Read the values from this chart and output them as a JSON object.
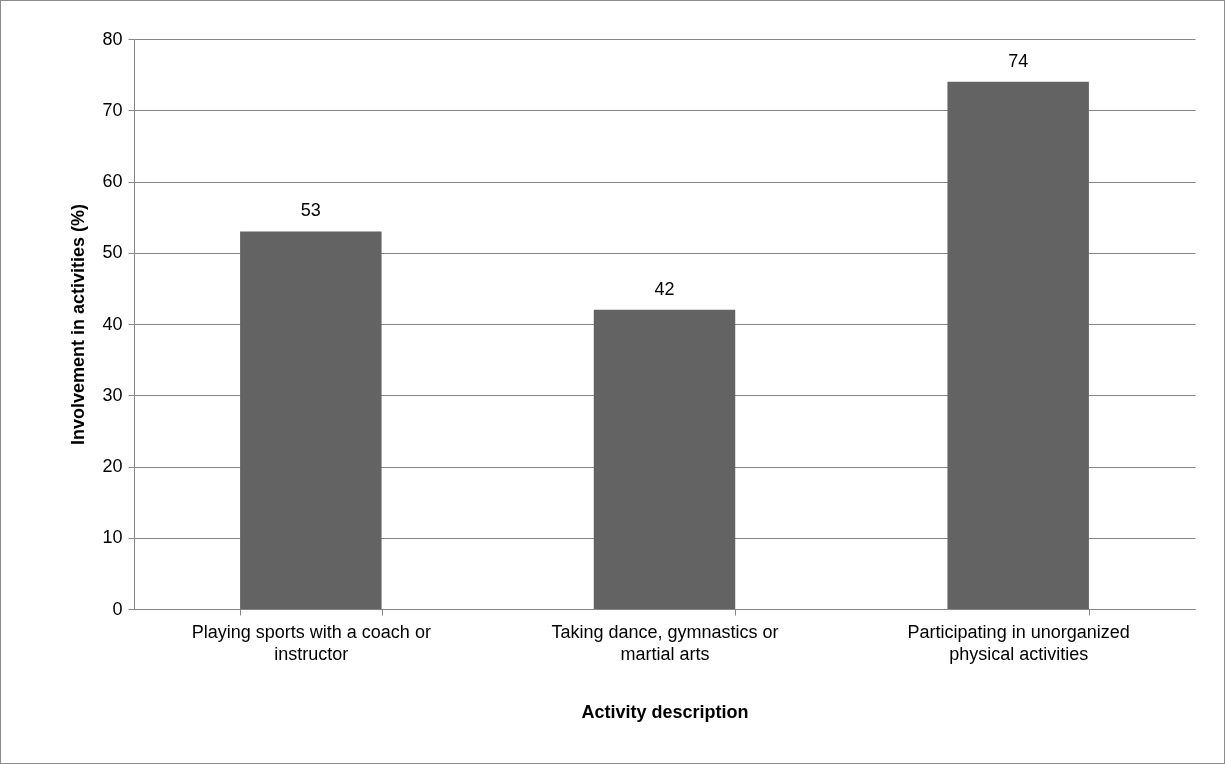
{
  "chart_data": {
    "type": "bar",
    "xlabel": "Activity description",
    "ylabel": "Involvement in activities (%)",
    "categories": [
      "Playing sports with a coach or instructor",
      "Taking dance, gymnastics or martial arts",
      "Participating in unorganized physical activities"
    ],
    "values": [
      53,
      42,
      74
    ],
    "color": "#636363",
    "ylim": [
      0,
      80
    ],
    "yticks": [
      0,
      10,
      20,
      30,
      40,
      50,
      60,
      70,
      80
    ],
    "grid": "y",
    "data_labels": true
  }
}
